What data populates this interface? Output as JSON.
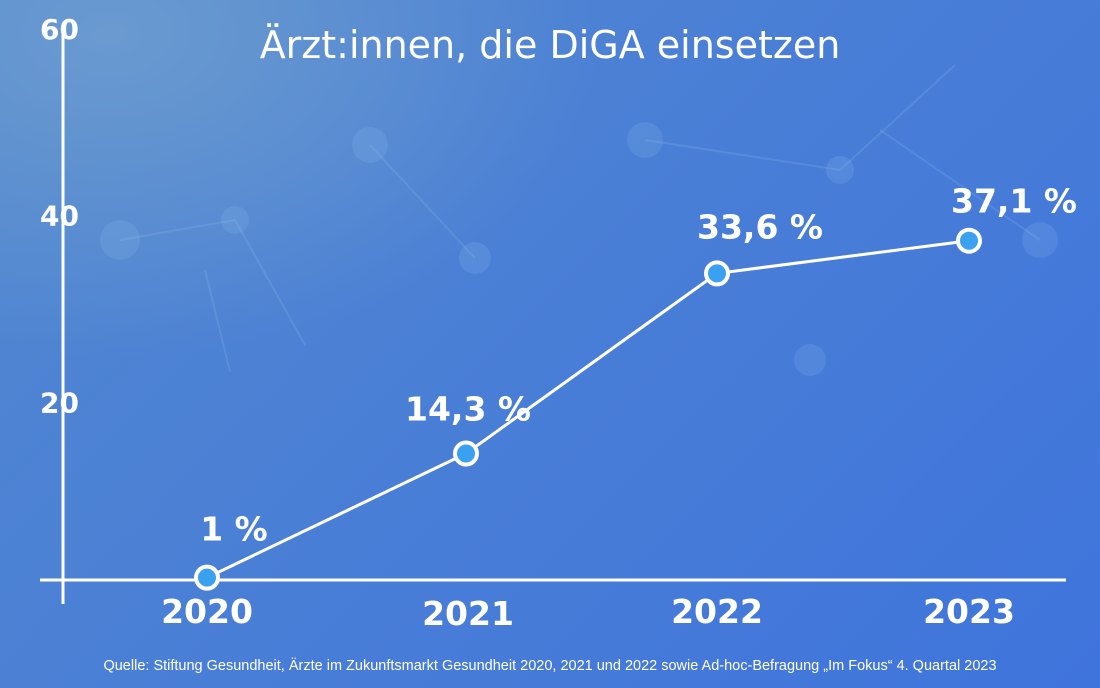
{
  "chart_data": {
    "type": "line",
    "title": "Ärzt:innen, die DiGA einsetzen",
    "categories": [
      "2020",
      "2021",
      "2022",
      "2023"
    ],
    "values": [
      1,
      14.3,
      33.6,
      37.1
    ],
    "data_labels": [
      "1 %",
      "14,3 %",
      "33,6 %",
      "37,1 %"
    ],
    "yticks": [
      "20",
      "40",
      "60"
    ],
    "ylim": [
      0,
      60
    ],
    "grid": false,
    "legend": "none",
    "xlabel": "",
    "ylabel": "",
    "colors": {
      "line": "#ffffff",
      "marker_fill": "#3aa0f0",
      "background": "#4a7fd6"
    }
  },
  "source": "Quelle: Stiftung Gesundheit, Ärzte im Zukunftsmarkt Gesundheit 2020, 2021 und 2022 sowie Ad-hoc-Befragung „Im Fokus“ 4. Quartal 2023"
}
